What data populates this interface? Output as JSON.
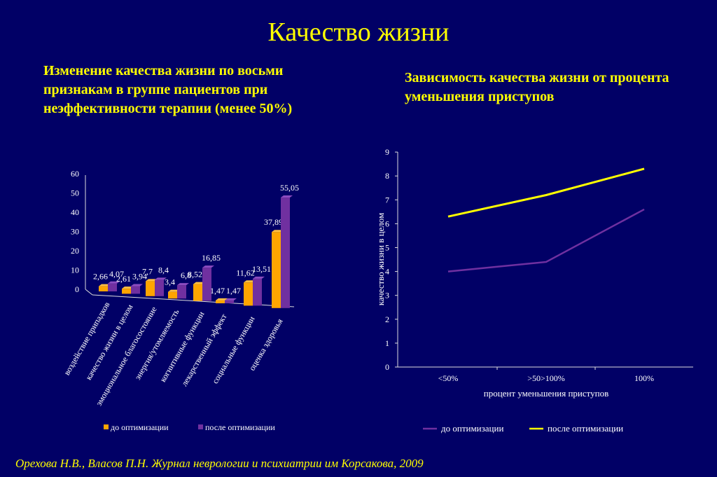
{
  "title": "Качество жизни",
  "left_subtitle": "Изменение качества жизни по восьми признакам в группе пациентов  при неэффективности терапии (менее 50%)",
  "right_subtitle": "Зависимость качества жизни от процента уменьшения приступов",
  "footer": "Орехова Н.В., Власов П.Н. Журнал неврологии и психиатрии  им Корсакова, 2009",
  "colors": {
    "background": "#010066",
    "title": "#ffff00",
    "orange": "#ffa500",
    "purple": "#7030a0",
    "yellow": "#ffff00"
  },
  "chart_data": [
    {
      "type": "bar",
      "style": "3d-clustered",
      "categories": [
        "воздействие припадков",
        "качество жизни в целом",
        "эмоциональное благосостояние",
        "энергия/утомляемость",
        "когнитивные функции",
        "лекарственный эффект",
        "социальные функции",
        "оценка здоровья"
      ],
      "series": [
        {
          "name": "до оптимизации",
          "color": "#ffa500",
          "values": [
            2.66,
            2.61,
            7.7,
            3.4,
            8.52,
            1.47,
            11.62,
            37.89
          ],
          "labels": [
            "2,66",
            "2,61",
            "7,7",
            "3,4",
            "8,52",
            "1,47",
            "11,62",
            "37,89"
          ]
        },
        {
          "name": "после оптимизации",
          "color": "#7030a0",
          "values": [
            4.07,
            3.94,
            8.4,
            6.8,
            16.85,
            1.47,
            13.51,
            55.05
          ],
          "labels": [
            "4,07",
            "3,94",
            "8,4",
            "6,8",
            "16,85",
            "1,47",
            "13,51",
            "55,05"
          ]
        }
      ],
      "yticks": [
        "0",
        "10",
        "20",
        "30",
        "40",
        "50",
        "60"
      ],
      "ylim": [
        0,
        60
      ],
      "legend": "bottom"
    },
    {
      "type": "line",
      "categories": [
        "<50%",
        ">50>100%",
        "100%"
      ],
      "series": [
        {
          "name": "до оптимизации",
          "color": "#7030a0",
          "values": [
            4.0,
            4.4,
            6.6
          ]
        },
        {
          "name": "после оптимизации",
          "color": "#ffff00",
          "values": [
            6.3,
            7.2,
            8.3
          ]
        }
      ],
      "xlabel": "процент уменьшения приступов",
      "ylabel": "качество жизни в целом",
      "yticks": [
        "0",
        "1",
        "2",
        "3",
        "4",
        "5",
        "6",
        "7",
        "8",
        "9"
      ],
      "ylim": [
        0,
        9
      ],
      "legend": "bottom"
    }
  ]
}
